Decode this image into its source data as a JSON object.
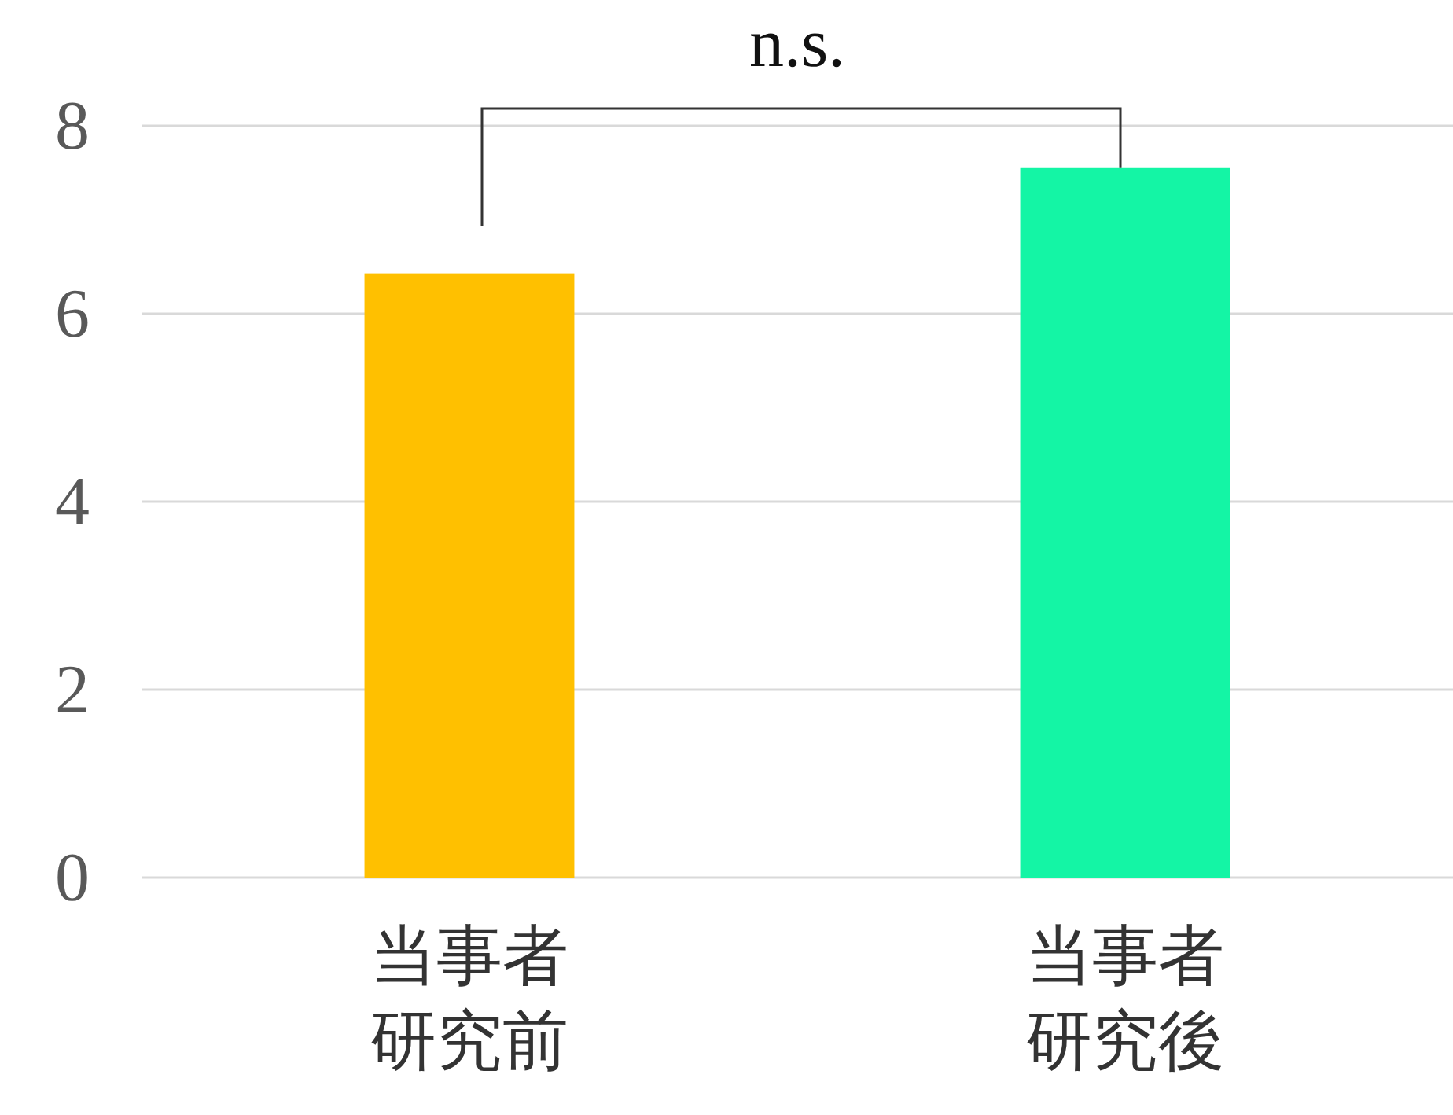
{
  "chart_data": {
    "type": "bar",
    "categories": [
      "当事者研究前",
      "当事者研究後"
    ],
    "values": [
      6.43,
      7.55
    ],
    "colors": [
      "#ffc000",
      "#14f5a5"
    ],
    "ylim": [
      0,
      8
    ],
    "yticks": [
      0,
      2,
      4,
      6,
      8
    ],
    "grid": "y",
    "annotations": [
      "n.s."
    ]
  }
}
